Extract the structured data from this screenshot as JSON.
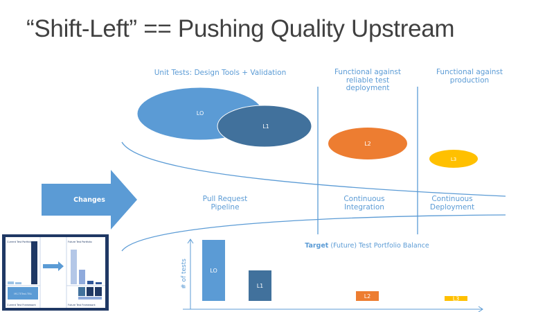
{
  "title": "“Shift-Left” == Pushing Quality Upstream",
  "columns": {
    "unit_tests": "Unit Tests: Design Tools + Validation",
    "functional_reliable": "Functional against reliable test deployment",
    "functional_production": "Functional against production"
  },
  "stages": {
    "pull_request": "Pull Request Pipeline",
    "ci": "Continuous Integration",
    "cd": "Continuous Deployment"
  },
  "arrow_label": "Changes",
  "bubbles": [
    {
      "label": "LO",
      "color": "#5b9bd5"
    },
    {
      "label": "L1",
      "color": "#41719c"
    },
    {
      "label": "L2",
      "color": "#ed7d31"
    },
    {
      "label": "L3",
      "color": "#ffc000"
    }
  ],
  "chart_data": {
    "type": "bar",
    "title_bold": "Target",
    "title_rest": "(Future) Test Portfolio Balance",
    "ylabel": "# of tests",
    "categories": [
      "LO",
      "L1",
      "L2",
      "L3"
    ],
    "values": [
      88,
      44,
      14,
      7
    ],
    "colors": [
      "#5b9bd5",
      "#41719c",
      "#ed7d31",
      "#ffc000"
    ],
    "grid": false
  },
  "thumbnail": {
    "current_portfolio": "Current Test Portfolio",
    "future_portfolio": "Future Test Portfolio",
    "current_framework": "Current Test Framework",
    "future_framework": "Future Test Framework",
    "framework_name": "MS.TETest.TRA"
  }
}
